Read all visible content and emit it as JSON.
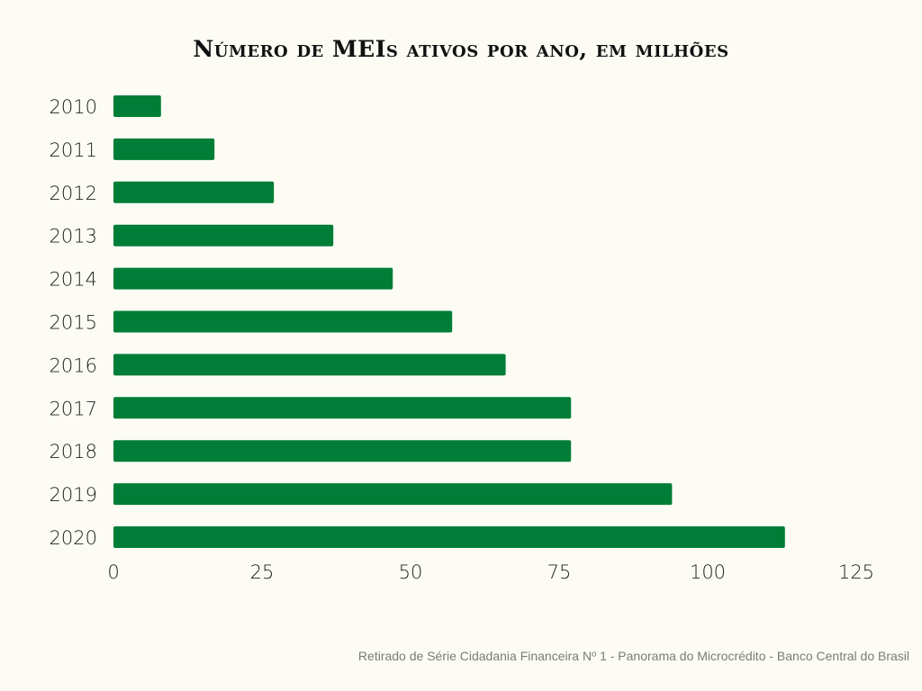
{
  "chart_data": {
    "type": "bar",
    "orientation": "horizontal",
    "title": "Número de MEIs ativos por ano, em milhões",
    "categories": [
      "2010",
      "2011",
      "2012",
      "2013",
      "2014",
      "2015",
      "2016",
      "2017",
      "2018",
      "2019",
      "2020"
    ],
    "values": [
      8,
      17,
      27,
      37,
      47,
      57,
      66,
      77,
      77,
      94,
      113
    ],
    "xticks": [
      0,
      25,
      50,
      75,
      100,
      125
    ],
    "xlim": [
      0,
      125
    ],
    "xlabel": "",
    "ylabel": "",
    "grid": false,
    "bar_color": "#007d36"
  },
  "footer": {
    "source": "Retirado de Série Cidadania Financeira Nº 1 - Panorama do Microcrédito - Banco Central do Brasil"
  }
}
